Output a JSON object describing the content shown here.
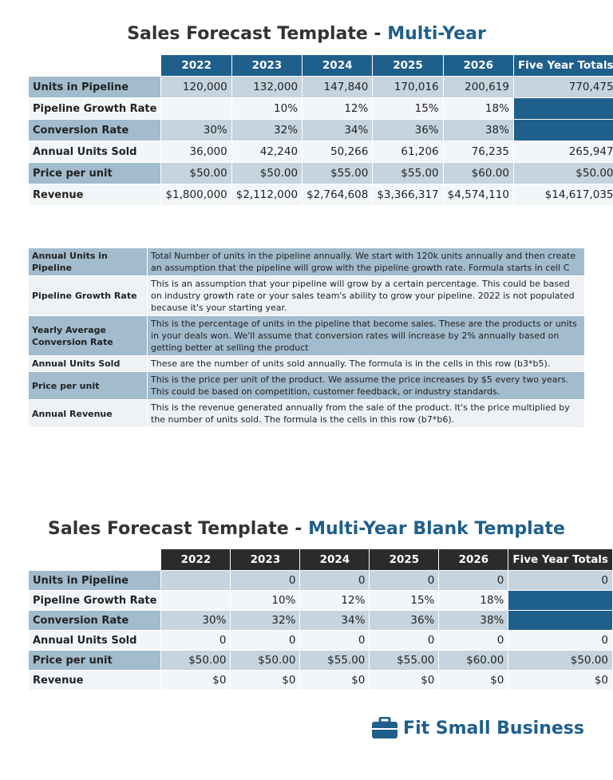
{
  "title1": {
    "main": "Sales Forecast Template - ",
    "accent": "Multi-Year"
  },
  "table1": {
    "header": [
      "2022",
      "2023",
      "2024",
      "2025",
      "2026",
      "Five Year Totals"
    ],
    "rows": [
      {
        "label": "Units in Pipeline",
        "cells": [
          "120,000",
          "132,000",
          "147,840",
          "170,016",
          "200,619",
          "770,475"
        ]
      },
      {
        "label": "Pipeline Growth Rate",
        "cells": [
          null,
          "10%",
          "12%",
          "15%",
          "18%",
          null
        ]
      },
      {
        "label": "Conversion Rate",
        "cells": [
          "30%",
          "32%",
          "34%",
          "36%",
          "38%",
          null
        ]
      },
      {
        "label": "Annual Units Sold",
        "cells": [
          "36,000",
          "42,240",
          "50,266",
          "61,206",
          "76,235",
          "265,947"
        ]
      },
      {
        "label": "Price per unit",
        "cells": [
          "$50.00",
          "$50.00",
          "$55.00",
          "$55.00",
          "$60.00",
          "$50.00"
        ]
      },
      {
        "label": "Revenue",
        "cells": [
          "$1,800,000",
          "$2,112,000",
          "$2,764,608",
          "$3,366,317",
          "$4,574,110",
          "$14,617,035"
        ]
      }
    ]
  },
  "descriptions": [
    {
      "label": "Annual Units in Pipeline",
      "text": "Total Number of units in the pipeline annually. We start with 120k units annually and then create an assumption that the pipeline will grow with the pipeline growth rate. Formula starts in cell C"
    },
    {
      "label": "Pipeline Growth Rate",
      "text": "This is an assumption that your pipeline will grow by a certain percentage. This could be based on industry growth rate or your sales team's ability to grow your pipeline. 2022 is not populated because it's your starting year."
    },
    {
      "label": "Yearly Average Conversion Rate",
      "text": "This is the percentage of units in the pipeline that become sales. These are the products or units in your deals won. We'll assume that conversion rates will increase by 2% annually based on getting better at selling the product"
    },
    {
      "label": "Annual Units Sold",
      "text": "These are the number of units sold annually. The formula is in the cells in this row (b3*b5)."
    },
    {
      "label": "Price per unit",
      "text": "This is the price per unit of the product. We assume the price increases by $5 every two years. This could be based on competition, customer feedback, or industry standards."
    },
    {
      "label": "Annual Revenue",
      "text": "This is the revenue generated annually from the sale of the product. It's the price multiplied by the number of units sold. The formula is the cells in this row (b7*b6)."
    }
  ],
  "title2": {
    "main": "Sales Forecast Template - ",
    "accent": "Multi-Year Blank Template"
  },
  "table2": {
    "header": [
      "2022",
      "2023",
      "2024",
      "2025",
      "2026",
      "Five Year Totals"
    ],
    "rows": [
      {
        "label": "Units in Pipeline",
        "cells": [
          null,
          "0",
          "0",
          "0",
          "0",
          "0"
        ]
      },
      {
        "label": "Pipeline Growth Rate",
        "cells": [
          null,
          "10%",
          "12%",
          "15%",
          "18%",
          null
        ]
      },
      {
        "label": "Conversion Rate",
        "cells": [
          "30%",
          "32%",
          "34%",
          "36%",
          "38%",
          null
        ]
      },
      {
        "label": "Annual Units Sold",
        "cells": [
          "0",
          "0",
          "0",
          "0",
          "0",
          "0"
        ]
      },
      {
        "label": "Price per unit",
        "cells": [
          "$50.00",
          "$50.00",
          "$55.00",
          "$55.00",
          "$60.00",
          "$50.00"
        ]
      },
      {
        "label": "Revenue",
        "cells": [
          "$0",
          "$0",
          "$0",
          "$0",
          "$0",
          "$0"
        ]
      }
    ]
  },
  "logo": "Fit Small Business"
}
